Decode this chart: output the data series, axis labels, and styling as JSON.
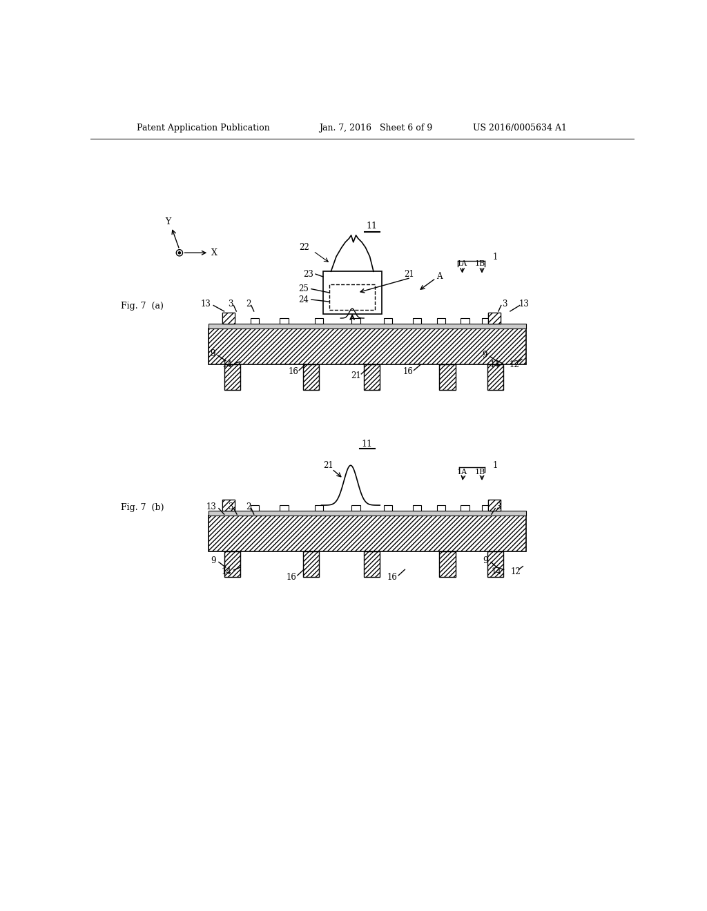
{
  "bg_color": "#ffffff",
  "header_left": "Patent Application Publication",
  "header_mid": "Jan. 7, 2016   Sheet 6 of 9",
  "header_right": "US 2016/0005634 A1",
  "fig_a_label": "Fig. 7  (a)",
  "fig_b_label": "Fig. 7  (b)",
  "label_11a": "11",
  "label_11b": "11"
}
